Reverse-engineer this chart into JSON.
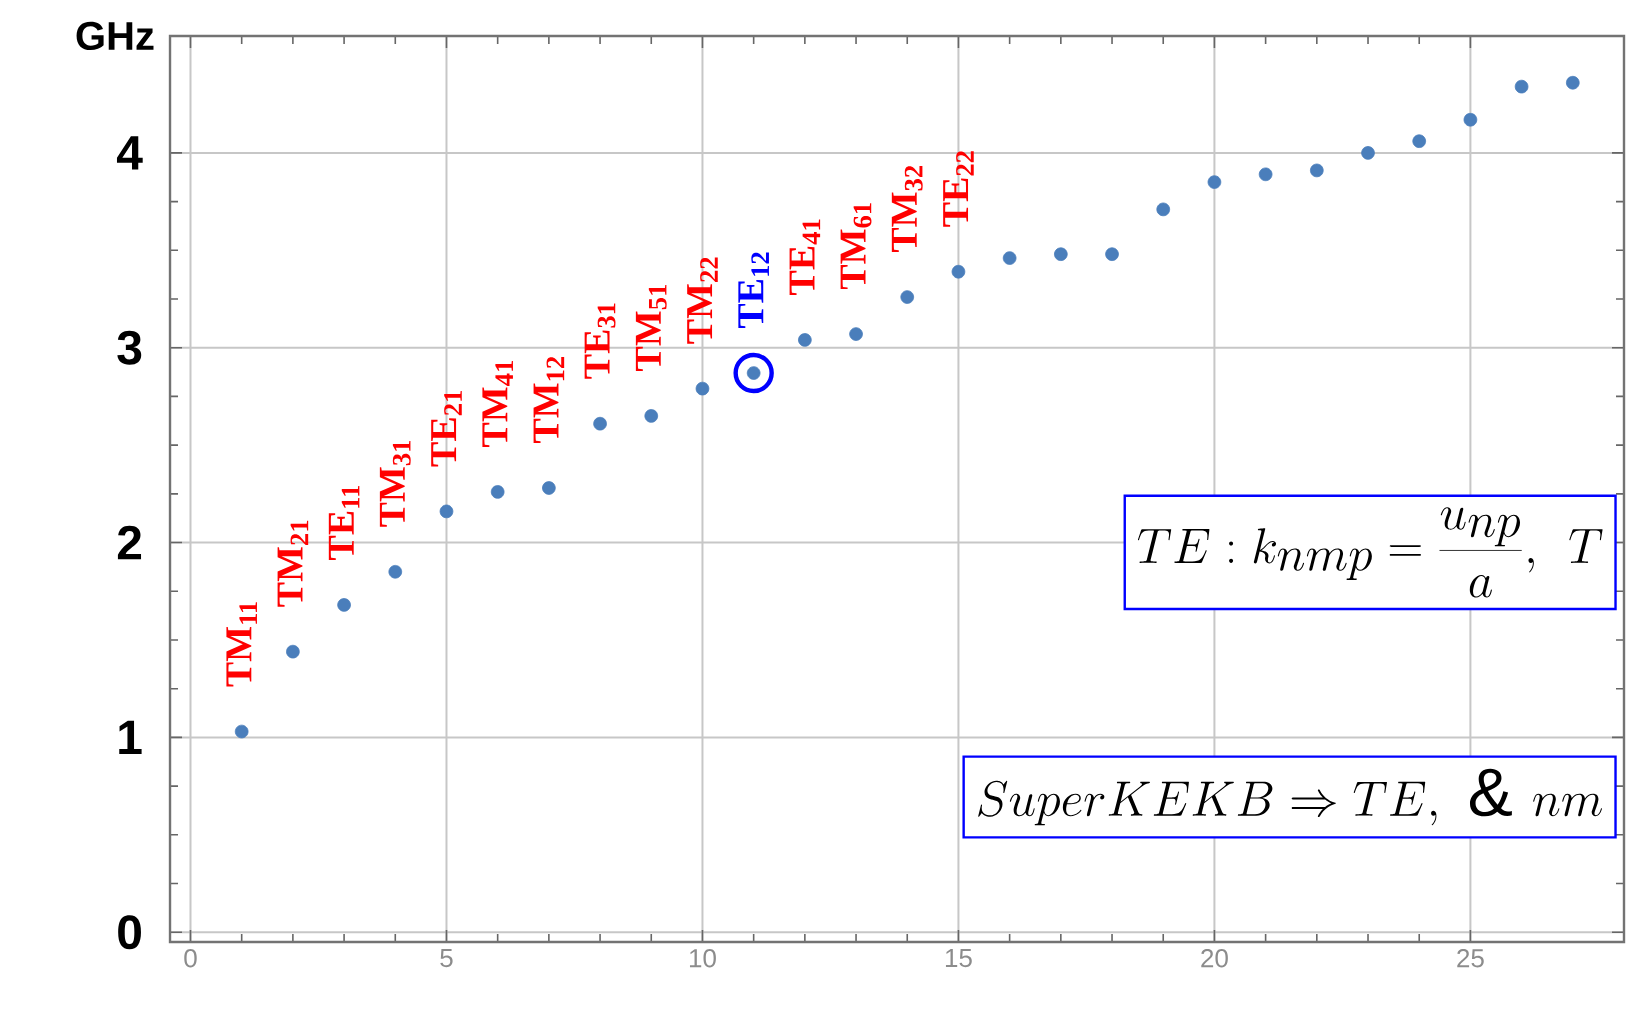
{
  "chart_data": {
    "type": "scatter",
    "ylabel": "GHz",
    "marker": "circle",
    "grid": true,
    "xlim": [
      -0.4,
      28
    ],
    "ylim": [
      -0.05,
      4.6
    ],
    "xticks": [
      0,
      5,
      10,
      15,
      20,
      25
    ],
    "yticks": [
      0,
      1,
      2,
      3,
      4
    ],
    "series": [
      {
        "color": "#4a7ebb",
        "x": [
          1,
          2,
          3,
          4,
          5,
          6,
          7,
          8,
          9,
          10,
          11,
          12,
          13,
          14,
          15,
          16,
          17,
          18,
          19,
          20,
          21,
          22,
          23,
          24,
          25,
          26,
          27
        ],
        "values": [
          1.03,
          1.44,
          1.68,
          1.85,
          2.16,
          2.26,
          2.28,
          2.61,
          2.65,
          2.79,
          2.87,
          3.04,
          3.07,
          3.26,
          3.39,
          3.46,
          3.48,
          3.48,
          3.71,
          3.85,
          3.89,
          3.91,
          4.0,
          4.06,
          4.17,
          4.34,
          4.36
        ]
      },
      {
        "color": "#0000ff",
        "x": [
          11
        ],
        "values": [
          2.87
        ]
      }
    ],
    "annotations": [
      {
        "text": "TM$_{11}$",
        "x": 1,
        "y": 1.03
      },
      {
        "text": "TM$_{21}$",
        "x": 2,
        "y": 1.44
      },
      {
        "text": "TE$_{11}$",
        "x": 3,
        "y": 1.68
      },
      {
        "text": "TM$_{31}$",
        "x": 4,
        "y": 1.85
      },
      {
        "text": "TE$_{21}$",
        "x": 5,
        "y": 2.16
      },
      {
        "text": "TM$_{41}$",
        "x": 6,
        "y": 2.26
      },
      {
        "text": "TM$_{12}$",
        "x": 7,
        "y": 2.28
      },
      {
        "text": "TE$_{31}$",
        "x": 8,
        "y": 2.61
      },
      {
        "text": "TM$_{51}$",
        "x": 9,
        "y": 2.65
      },
      {
        "text": "TM$_{22}$",
        "x": 10,
        "y": 2.79
      },
      {
        "text": "TE$_{12}$",
        "x": 11,
        "y": 2.87
      },
      {
        "text": "TE$_{41}$",
        "x": 12,
        "y": 3.04
      },
      {
        "text": "TM$_{61}$",
        "x": 13,
        "y": 3.07
      },
      {
        "text": "TM$_{32}$",
        "x": 14,
        "y": 3.26
      },
      {
        "text": "TE$_{22}$",
        "x": 15,
        "y": 3.39
      },
      "TE : k_{nmp} = \\frac{u_{np}}{a},\\ T",
      "SuperKEKB \\Rightarrow TE,\\ \\&\\ nm"
    ]
  }
}
